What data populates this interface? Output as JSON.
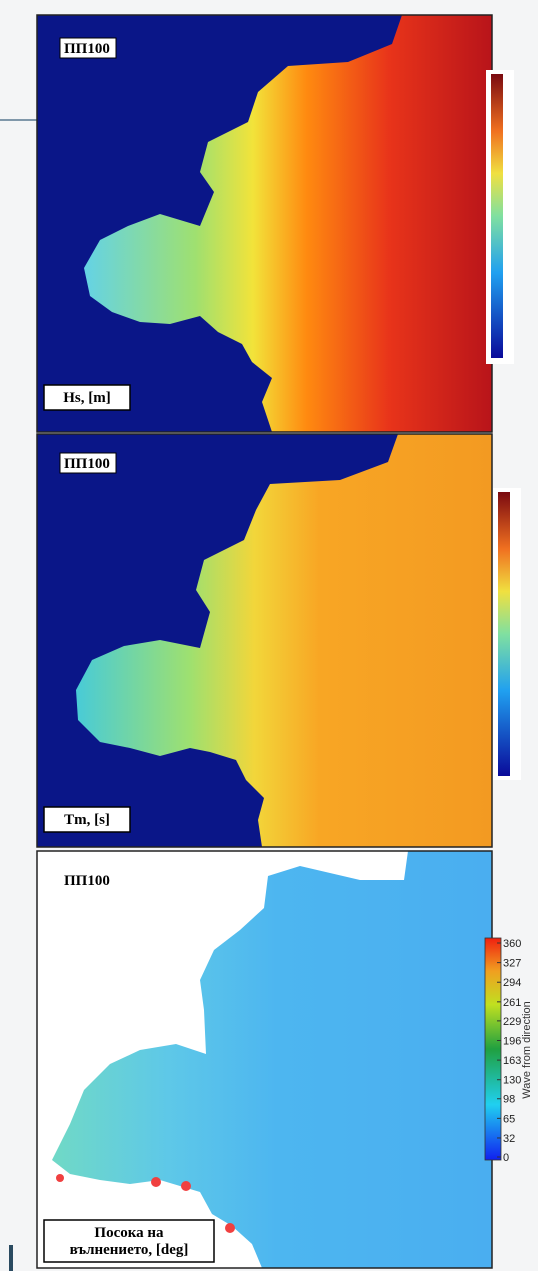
{
  "panels": [
    {
      "tag": "ПП100",
      "label": {
        "lines": [
          "Hs, [m]"
        ]
      }
    },
    {
      "tag": "ПП100",
      "label": {
        "lines": [
          "Tm, [s]"
        ]
      }
    },
    {
      "tag": "ПП100",
      "label": {
        "lines": [
          "Посока на",
          "вълнението, [deg]"
        ]
      },
      "colorbar": {
        "title": "Wave from direction",
        "ticks": [
          360,
          327,
          294,
          261,
          229,
          196,
          163,
          130,
          98,
          65,
          32,
          0
        ]
      }
    }
  ]
}
